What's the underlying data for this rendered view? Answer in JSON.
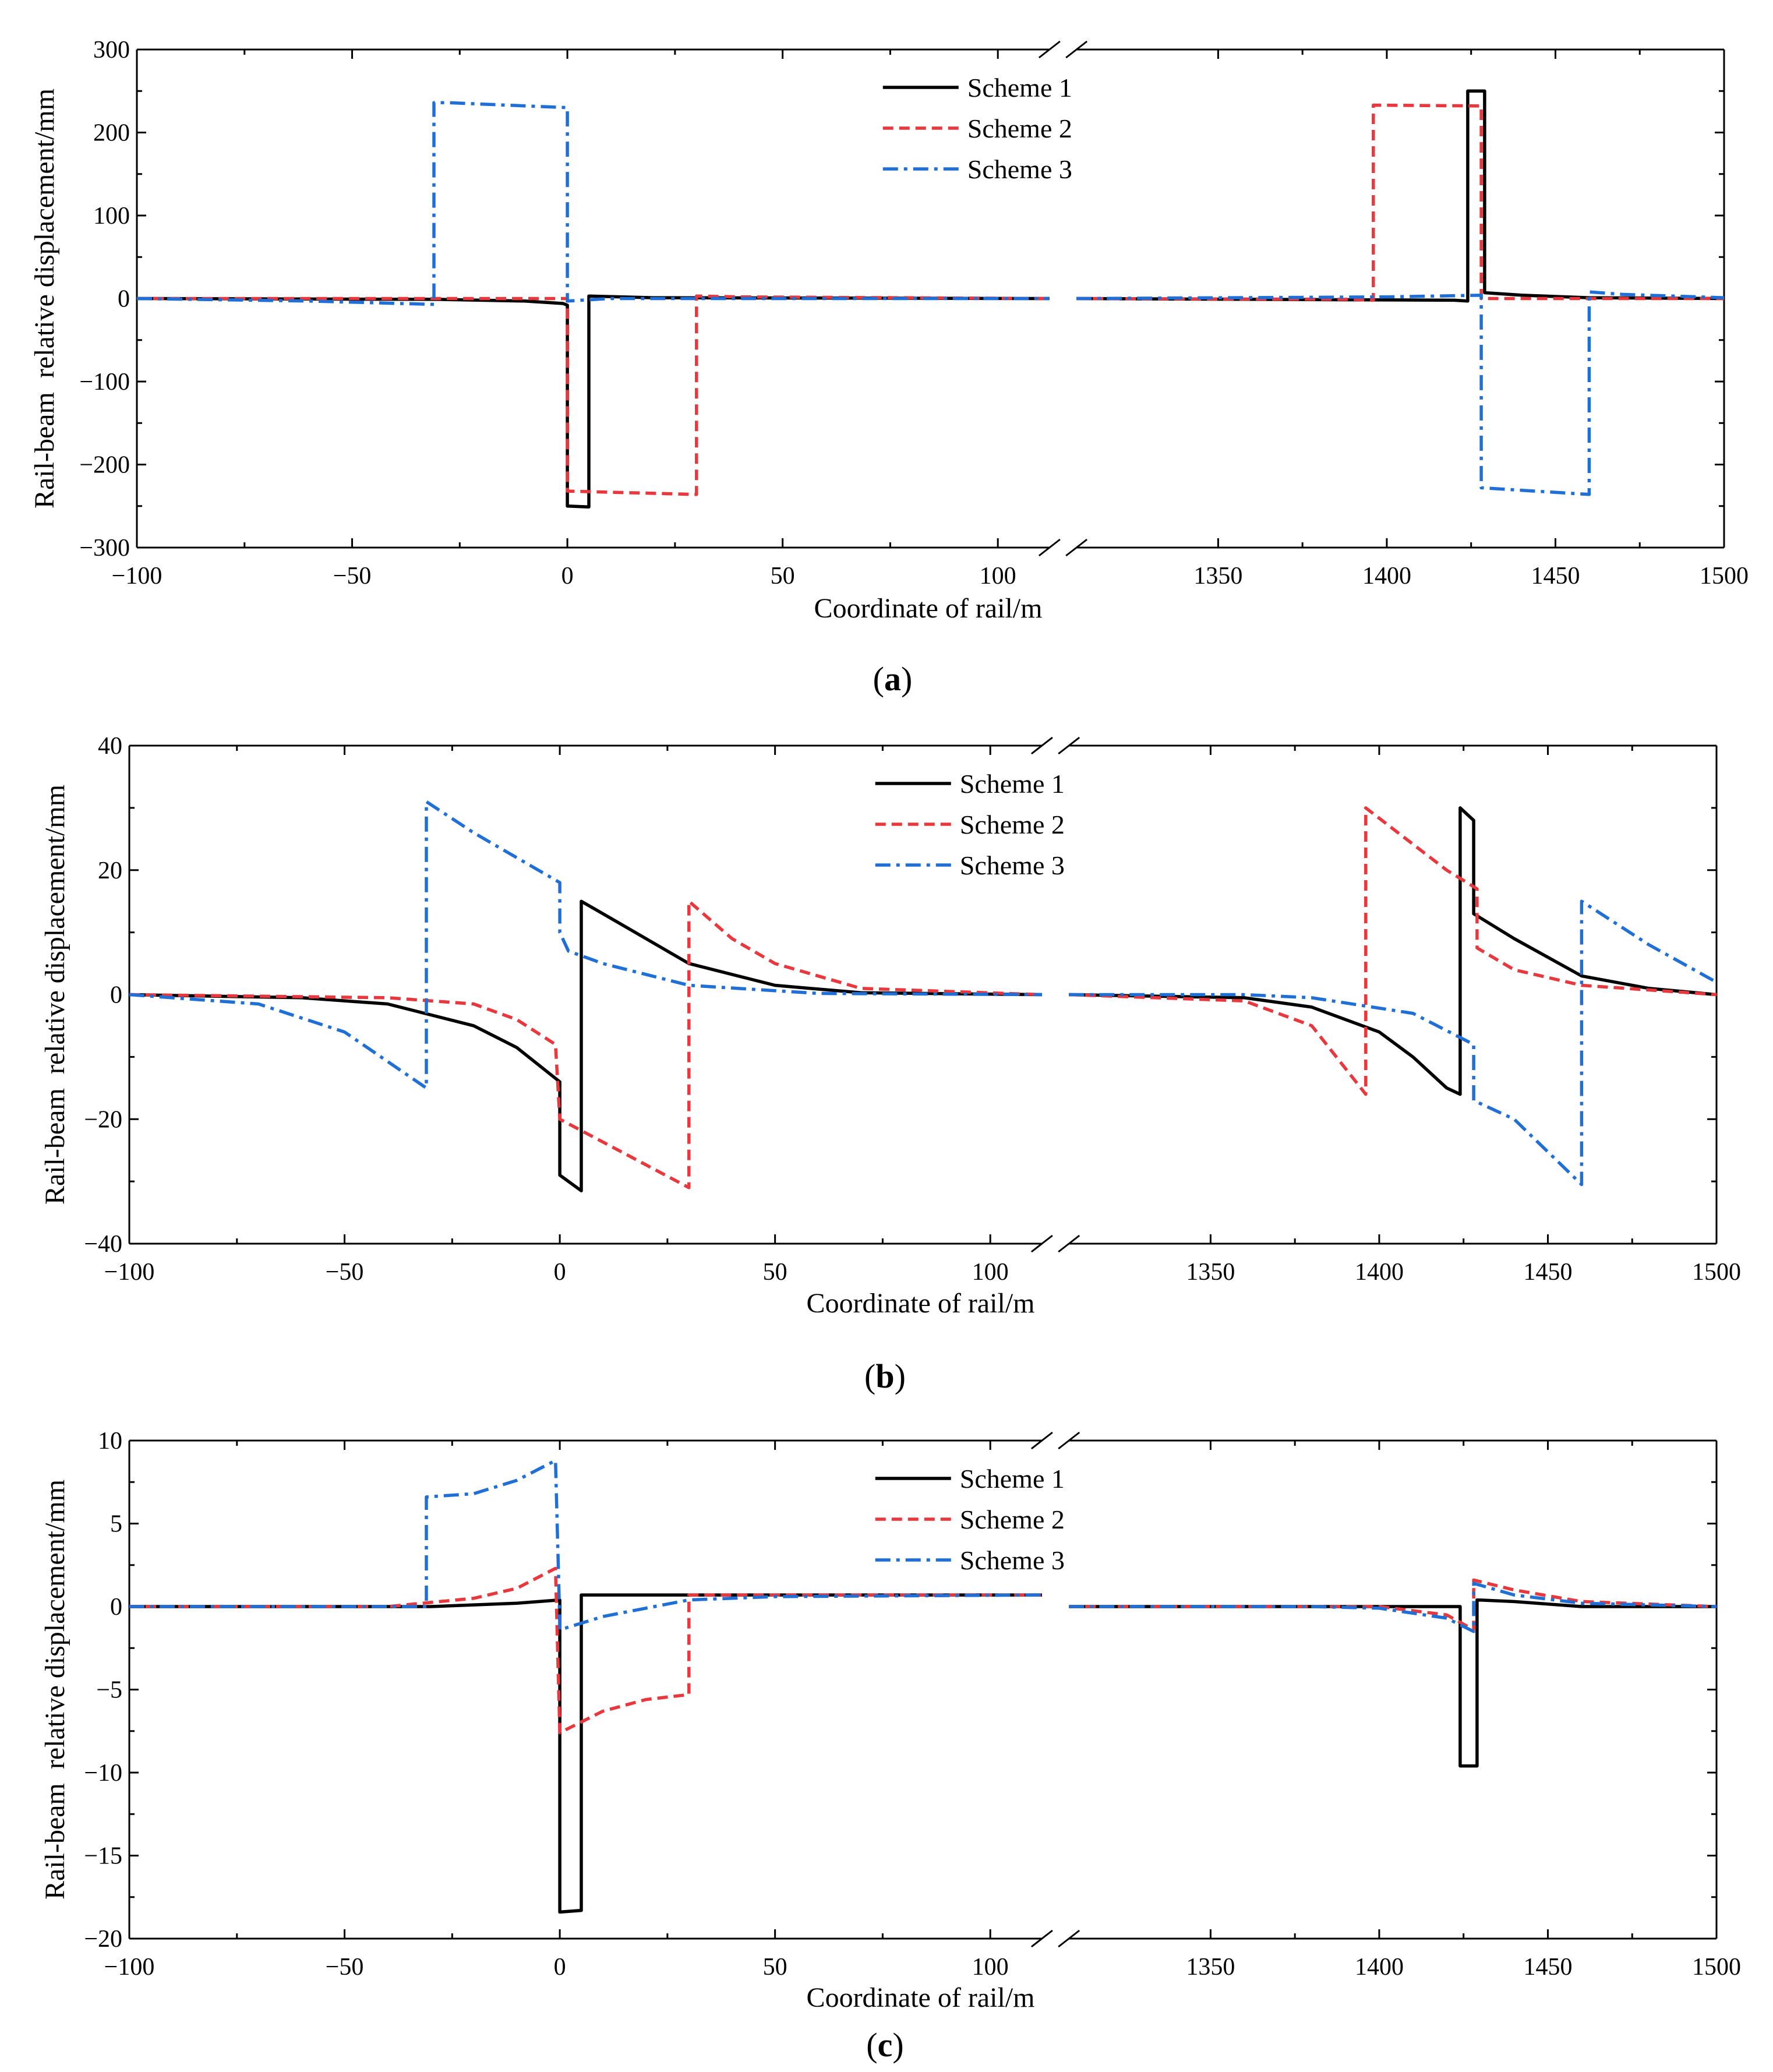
{
  "figure": {
    "panels": [
      {
        "id": "a",
        "caption": "(a)",
        "caption_letter": "a"
      },
      {
        "id": "b",
        "caption": "(b)",
        "caption_letter": "b"
      },
      {
        "id": "c",
        "caption": "(c)",
        "caption_letter": "c"
      }
    ]
  },
  "colors": {
    "scheme1": "#000000",
    "scheme2": "#e8383d",
    "scheme3": "#1f6fd6",
    "axis": "#000000"
  },
  "chart_data": [
    {
      "type": "line",
      "panel": "a",
      "xlabel": "Coordinate of rail/m",
      "ylabel": "Rail-beam  relative displacement/mm",
      "ylim": [
        -300,
        300
      ],
      "yticks": [
        -300,
        -200,
        -100,
        0,
        100,
        200,
        300
      ],
      "ytick_labels": [
        "−300",
        "−200",
        "−100",
        "0",
        "100",
        "200",
        "300"
      ],
      "broken_x_axis": {
        "left_segment": [
          -100,
          112
        ],
        "right_segment": [
          1308,
          1500
        ],
        "left_ticks": [
          -100,
          -50,
          0,
          50,
          100
        ],
        "left_tick_labels": [
          "−100",
          "−50",
          "0",
          "50",
          "100"
        ],
        "right_ticks": [
          1350,
          1400,
          1450,
          1500
        ],
        "right_tick_labels": [
          "1350",
          "1400",
          "1450",
          "1500"
        ]
      },
      "legend": {
        "position": "top-center",
        "entries": [
          "Scheme 1",
          "Scheme 2",
          "Scheme 3"
        ]
      },
      "series": [
        {
          "name": "Scheme 1",
          "style": "solid",
          "x": [
            -100,
            -30,
            -10,
            -1,
            0,
            0,
            5,
            5,
            20,
            112,
            1308,
            1420,
            1424,
            1424,
            1429,
            1429,
            1440,
            1460,
            1500
          ],
          "y": [
            0,
            -1,
            -3,
            -6,
            -8,
            -250,
            -251,
            3,
            1,
            0,
            0,
            -2,
            -3,
            250,
            250,
            7,
            4,
            1,
            0
          ]
        },
        {
          "name": "Scheme 2",
          "style": "dash",
          "x": [
            -100,
            -1,
            0,
            0,
            30,
            30,
            40,
            112,
            1308,
            1390,
            1396,
            1396,
            1428,
            1428,
            1450,
            1500
          ],
          "y": [
            0,
            0,
            0,
            -232,
            -236,
            3,
            2,
            0,
            0,
            -1,
            -2,
            233,
            232,
            0,
            0,
            0
          ],
          "y_note": "approx read from axes"
        },
        {
          "name": "Scheme 3",
          "style": "dashdot",
          "x": [
            -100,
            -60,
            -31,
            -31,
            -28,
            0,
            0,
            10,
            112,
            1308,
            1400,
            1428,
            1428,
            1460,
            1460,
            1470,
            1500
          ],
          "y": [
            0,
            -3,
            -7,
            236,
            236,
            230,
            -3,
            0,
            0,
            0,
            2,
            4,
            -228,
            -236,
            8,
            5,
            1
          ]
        }
      ]
    },
    {
      "type": "line",
      "panel": "b",
      "xlabel": "Coordinate of rail/m",
      "ylabel": "Rail-beam  relative displacement/mm",
      "ylim": [
        -40,
        40
      ],
      "yticks": [
        -40,
        -20,
        0,
        20,
        40
      ],
      "ytick_labels": [
        "−40",
        "−20",
        "0",
        "20",
        "40"
      ],
      "broken_x_axis": {
        "left_segment": [
          -100,
          112
        ],
        "right_segment": [
          1308,
          1500
        ],
        "left_ticks": [
          -100,
          -50,
          0,
          50,
          100
        ],
        "left_tick_labels": [
          "−100",
          "−50",
          "0",
          "50",
          "100"
        ],
        "right_ticks": [
          1350,
          1400,
          1450,
          1500
        ],
        "right_tick_labels": [
          "1350",
          "1400",
          "1450",
          "1500"
        ]
      },
      "legend": {
        "position": "top-center",
        "entries": [
          "Scheme 1",
          "Scheme 2",
          "Scheme 3"
        ]
      },
      "series": [
        {
          "name": "Scheme 1",
          "style": "solid",
          "x": [
            -100,
            -60,
            -40,
            -20,
            -10,
            0,
            0,
            5,
            5,
            15,
            30,
            50,
            70,
            112,
            1308,
            1360,
            1380,
            1400,
            1410,
            1420,
            1424,
            1424,
            1428,
            1428,
            1440,
            1460,
            1480,
            1500
          ],
          "y": [
            0,
            -0.5,
            -1.5,
            -5,
            -8.5,
            -14,
            -29,
            -31.5,
            15,
            11,
            5,
            1.5,
            0.3,
            0,
            0,
            -0.5,
            -2,
            -6,
            -10,
            -15,
            -16,
            30,
            28,
            13,
            9,
            3,
            1,
            0
          ],
          "y_note": "approx read from axes"
        },
        {
          "name": "Scheme 2",
          "style": "dash",
          "x": [
            -100,
            -40,
            -20,
            -10,
            -1,
            0,
            30,
            30,
            40,
            50,
            70,
            112,
            1308,
            1360,
            1380,
            1396,
            1396,
            1420,
            1429,
            1429,
            1440,
            1460,
            1500
          ],
          "y": [
            0,
            -0.5,
            -1.5,
            -4,
            -8,
            -20,
            -31,
            15,
            9,
            5,
            1,
            0,
            0,
            -1,
            -5,
            -16,
            30,
            20,
            17,
            7.5,
            4,
            1.5,
            0
          ]
        },
        {
          "name": "Scheme 3",
          "style": "dashdot",
          "x": [
            -100,
            -70,
            -50,
            -31,
            -31,
            -20,
            -10,
            0,
            0,
            2,
            10,
            30,
            60,
            112,
            1308,
            1360,
            1380,
            1410,
            1428,
            1428,
            1440,
            1460,
            1460,
            1480,
            1500
          ],
          "y": [
            0,
            -1.5,
            -6,
            -15,
            31,
            26,
            22,
            18,
            10,
            7,
            5,
            1.5,
            0.2,
            0,
            0,
            0,
            -0.5,
            -3,
            -8,
            -17,
            -20,
            -30.5,
            15,
            8,
            2
          ]
        }
      ]
    },
    {
      "type": "line",
      "panel": "c",
      "xlabel": "Coordinate of rail/m",
      "ylabel": "Rail-beam  relative displacement/mm",
      "ylim": [
        -20,
        10
      ],
      "yticks": [
        -20,
        -15,
        -10,
        -5,
        0,
        5,
        10
      ],
      "ytick_labels": [
        "−20",
        "−15",
        "−10",
        "−5",
        "0",
        "5",
        "10"
      ],
      "broken_x_axis": {
        "left_segment": [
          -100,
          112
        ],
        "right_segment": [
          1308,
          1500
        ],
        "left_ticks": [
          -100,
          -50,
          0,
          50,
          100
        ],
        "left_tick_labels": [
          "−100",
          "−50",
          "0",
          "50",
          "100"
        ],
        "right_ticks": [
          1350,
          1400,
          1450,
          1500
        ],
        "right_tick_labels": [
          "1350",
          "1400",
          "1450",
          "1500"
        ]
      },
      "legend": {
        "position": "top-center",
        "entries": [
          "Scheme 1",
          "Scheme 2",
          "Scheme 3"
        ]
      },
      "series": [
        {
          "name": "Scheme 1",
          "style": "solid",
          "x": [
            -100,
            -30,
            -10,
            0,
            0,
            5,
            5,
            30,
            112,
            1308,
            1420,
            1424,
            1424,
            1429,
            1429,
            1440,
            1460,
            1500
          ],
          "y": [
            0,
            0,
            0.2,
            0.4,
            -18.4,
            -18.3,
            0.7,
            0.7,
            0.7,
            0,
            0,
            0,
            -9.6,
            -9.6,
            0.4,
            0.3,
            0,
            0
          ]
        },
        {
          "name": "Scheme 2",
          "style": "dash",
          "x": [
            -100,
            -40,
            -20,
            -10,
            -1,
            0,
            10,
            20,
            30,
            30,
            50,
            112,
            1308,
            1380,
            1400,
            1420,
            1428,
            1428,
            1440,
            1460,
            1500
          ],
          "y": [
            0,
            0,
            0.5,
            1.1,
            2.3,
            -7.6,
            -6.3,
            -5.6,
            -5.3,
            0.7,
            0.7,
            0.7,
            0,
            0,
            0,
            -0.5,
            -1.4,
            1.6,
            1,
            0.3,
            0
          ]
        },
        {
          "name": "Scheme 3",
          "style": "dashdot",
          "x": [
            -100,
            -32,
            -31,
            -31,
            -20,
            -10,
            -1,
            0,
            0,
            10,
            20,
            30,
            50,
            112,
            1308,
            1380,
            1400,
            1420,
            1428,
            1428,
            1440,
            1460,
            1500
          ],
          "y": [
            0,
            0,
            0,
            6.6,
            6.8,
            7.6,
            8.8,
            -1,
            -1.4,
            -0.6,
            -0.1,
            0.4,
            0.6,
            0.7,
            0,
            0,
            -0.1,
            -0.7,
            -1.5,
            1.4,
            0.7,
            0.2,
            0
          ]
        }
      ]
    }
  ]
}
